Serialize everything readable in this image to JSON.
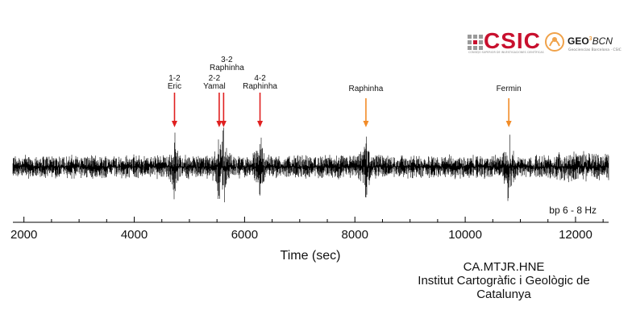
{
  "logos": {
    "csic_text": "CSIC",
    "csic_subtitle": "CONSEJO SUPERIOR DE INVESTIGACIONES CIENTÍFICAS",
    "geo_text": "GEO",
    "geo_sep": "3",
    "geo_bcn": "BCN",
    "geo_subtitle": "Geociencias Barcelona · CSIC",
    "csic_color": "#c8102e",
    "geo_color": "#f0a24a"
  },
  "station": {
    "code": "CA.MTJR.HNE",
    "institute_line1": "Institut Cartogràfic i Geològic de",
    "institute_line2": "Catalunya"
  },
  "chart_data": {
    "type": "line",
    "title": "",
    "xlabel": "Time (sec)",
    "ylabel": "",
    "xlim": [
      1800,
      12600
    ],
    "xticks": [
      2000,
      4000,
      6000,
      8000,
      10000,
      12000
    ],
    "xtick_labels": [
      "2000",
      "4000",
      "6000",
      "8000",
      "10000",
      "12000"
    ],
    "filter_label": "bp 6 - 8 Hz",
    "trace_color": "#000000",
    "grid": false,
    "events": [
      {
        "label_line1": "1-2",
        "label_line2": "Eric",
        "x": 4730,
        "color": "#e02020"
      },
      {
        "label_line1": "2-2",
        "label_line2": "Yamal",
        "x": 5540,
        "color": "#e02020"
      },
      {
        "label_line1": "3-2",
        "label_line2": "Raphinha",
        "x": 5620,
        "color": "#e02020"
      },
      {
        "label_line1": "4-2",
        "label_line2": "Raphinha",
        "x": 6280,
        "color": "#e02020"
      },
      {
        "label_line1": "",
        "label_line2": "Raphinha",
        "x": 8200,
        "color": "#f28c28"
      },
      {
        "label_line1": "",
        "label_line2": "Fermin",
        "x": 10790,
        "color": "#f28c28"
      }
    ]
  }
}
